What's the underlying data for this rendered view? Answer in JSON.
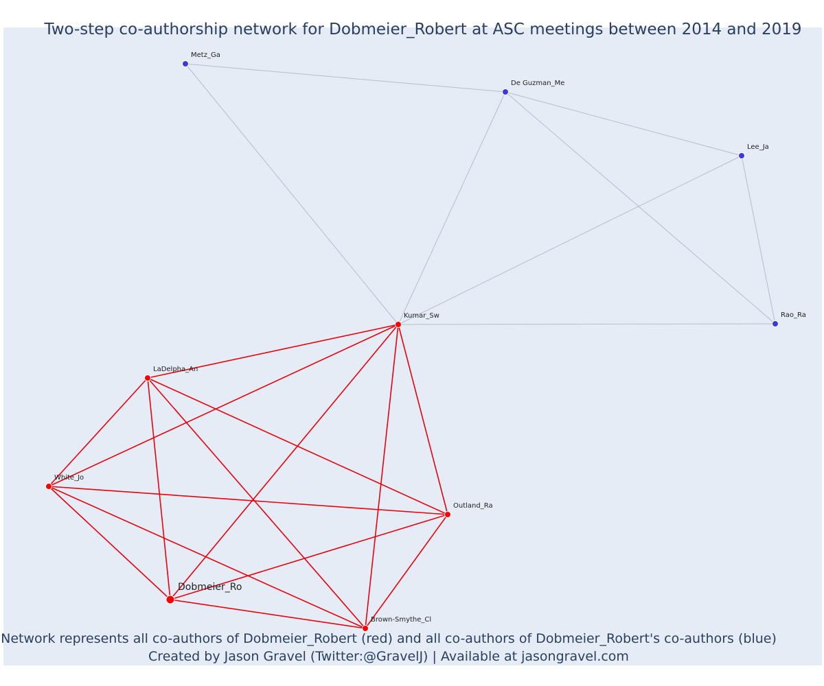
{
  "title": "Two-step co-authorship network for Dobmeier_Robert at ASC meetings between 2014 and 2019",
  "caption": {
    "line1": "Network represents all co-authors of Dobmeier_Robert (red) and all co-authors of Dobmeier_Robert's co-authors (blue)",
    "line2": "Created by Jason Gravel (Twitter:@GravelJ) | Available at jasongravel.com"
  },
  "colors": {
    "red": "#ff0000",
    "blue": "#3b3bdc",
    "red_edge": "#e8000b",
    "blue_edge": "#b6bdcc",
    "background": "#e5ecf6"
  },
  "nodes": [
    {
      "id": "Metz_Ga",
      "label": "Metz_Ga",
      "group": "blue"
    },
    {
      "id": "De Guzman_Me",
      "label": "De Guzman_Me",
      "group": "blue"
    },
    {
      "id": "Lee_Ja",
      "label": "Lee_Ja",
      "group": "blue"
    },
    {
      "id": "Rao_Ra",
      "label": "Rao_Ra",
      "group": "blue"
    },
    {
      "id": "Kumar_Sw",
      "label": "Kumar_Sw",
      "group": "red"
    },
    {
      "id": "LaDelpha_An",
      "label": "LaDelpha_An",
      "group": "red"
    },
    {
      "id": "White_Jo",
      "label": "White_Jo",
      "group": "red"
    },
    {
      "id": "Outland_Ra",
      "label": "Outland_Ra",
      "group": "red"
    },
    {
      "id": "Dobmeier_Ro",
      "label": "Dobmeier_Ro",
      "group": "red",
      "focal": true
    },
    {
      "id": "Brown-Smythe_Cl",
      "label": "Brown-Smythe_Cl",
      "group": "red"
    }
  ],
  "edges": [
    {
      "source": "Metz_Ga",
      "target": "De Guzman_Me",
      "group": "blue"
    },
    {
      "source": "Metz_Ga",
      "target": "Kumar_Sw",
      "group": "blue"
    },
    {
      "source": "De Guzman_Me",
      "target": "Lee_Ja",
      "group": "blue"
    },
    {
      "source": "De Guzman_Me",
      "target": "Kumar_Sw",
      "group": "blue"
    },
    {
      "source": "De Guzman_Me",
      "target": "Rao_Ra",
      "group": "blue"
    },
    {
      "source": "Lee_Ja",
      "target": "Kumar_Sw",
      "group": "blue"
    },
    {
      "source": "Lee_Ja",
      "target": "Rao_Ra",
      "group": "blue"
    },
    {
      "source": "Kumar_Sw",
      "target": "Rao_Ra",
      "group": "blue"
    },
    {
      "source": "Kumar_Sw",
      "target": "LaDelpha_An",
      "group": "red"
    },
    {
      "source": "Kumar_Sw",
      "target": "White_Jo",
      "group": "red"
    },
    {
      "source": "Kumar_Sw",
      "target": "Outland_Ra",
      "group": "red"
    },
    {
      "source": "Kumar_Sw",
      "target": "Dobmeier_Ro",
      "group": "red"
    },
    {
      "source": "Kumar_Sw",
      "target": "Brown-Smythe_Cl",
      "group": "red"
    },
    {
      "source": "LaDelpha_An",
      "target": "White_Jo",
      "group": "red"
    },
    {
      "source": "LaDelpha_An",
      "target": "Outland_Ra",
      "group": "red"
    },
    {
      "source": "LaDelpha_An",
      "target": "Dobmeier_Ro",
      "group": "red"
    },
    {
      "source": "LaDelpha_An",
      "target": "Brown-Smythe_Cl",
      "group": "red"
    },
    {
      "source": "White_Jo",
      "target": "Outland_Ra",
      "group": "red"
    },
    {
      "source": "White_Jo",
      "target": "Dobmeier_Ro",
      "group": "red"
    },
    {
      "source": "White_Jo",
      "target": "Brown-Smythe_Cl",
      "group": "red"
    },
    {
      "source": "Outland_Ra",
      "target": "Dobmeier_Ro",
      "group": "red"
    },
    {
      "source": "Outland_Ra",
      "target": "Brown-Smythe_Cl",
      "group": "red"
    },
    {
      "source": "Dobmeier_Ro",
      "target": "Brown-Smythe_Cl",
      "group": "red"
    }
  ]
}
